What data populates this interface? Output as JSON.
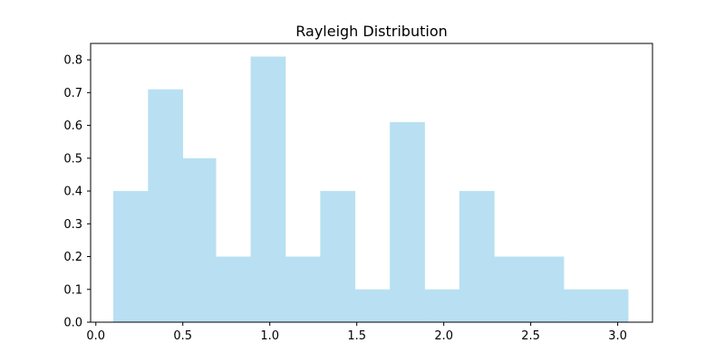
{
  "chart_data": {
    "type": "bar",
    "title": "Rayleigh Distribution",
    "xlabel": "",
    "ylabel": "",
    "xlim": [
      -0.0,
      3.2
    ],
    "ylim": [
      0,
      0.85
    ],
    "xticks": [
      0.0,
      0.5,
      1.0,
      1.5,
      2.0,
      2.5,
      3.0
    ],
    "xtick_labels": [
      "0.0",
      "0.5",
      "1.0",
      "1.5",
      "2.0",
      "2.5",
      "3.0"
    ],
    "yticks": [
      0.0,
      0.1,
      0.2,
      0.3,
      0.4,
      0.5,
      0.6,
      0.7,
      0.8
    ],
    "ytick_labels": [
      "0.0",
      "0.1",
      "0.2",
      "0.3",
      "0.4",
      "0.5",
      "0.6",
      "0.7",
      "0.8"
    ],
    "grid": false,
    "bar_color": "#b8e0f2",
    "bin_edges": [
      0.1,
      0.3,
      0.5,
      0.69,
      0.89,
      1.09,
      1.29,
      1.49,
      1.69,
      1.89,
      2.09,
      2.29,
      2.49,
      2.69,
      2.89,
      3.06
    ],
    "values": [
      0.4,
      0.71,
      0.5,
      0.2,
      0.81,
      0.2,
      0.4,
      0.1,
      0.61,
      0.1,
      0.4,
      0.2,
      0.2,
      0.1,
      0.1
    ]
  }
}
